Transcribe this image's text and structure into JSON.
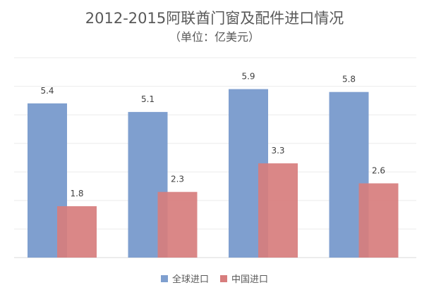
{
  "chart_data": {
    "type": "bar",
    "title": "2012-2015阿联酋门窗及配件进口情况",
    "subtitle": "（单位：亿美元）",
    "categories": [
      "",
      "",
      "",
      ""
    ],
    "series": [
      {
        "name": "全球进口",
        "values": [
          5.4,
          5.1,
          5.9,
          5.8
        ],
        "color": "#7f9fcf"
      },
      {
        "name": "中国进口",
        "values": [
          1.8,
          2.3,
          3.3,
          2.6
        ],
        "color": "#d77d7d"
      }
    ],
    "ylim": [
      0,
      7
    ],
    "grid": true,
    "legend_position": "bottom",
    "bars_overlap": true
  }
}
